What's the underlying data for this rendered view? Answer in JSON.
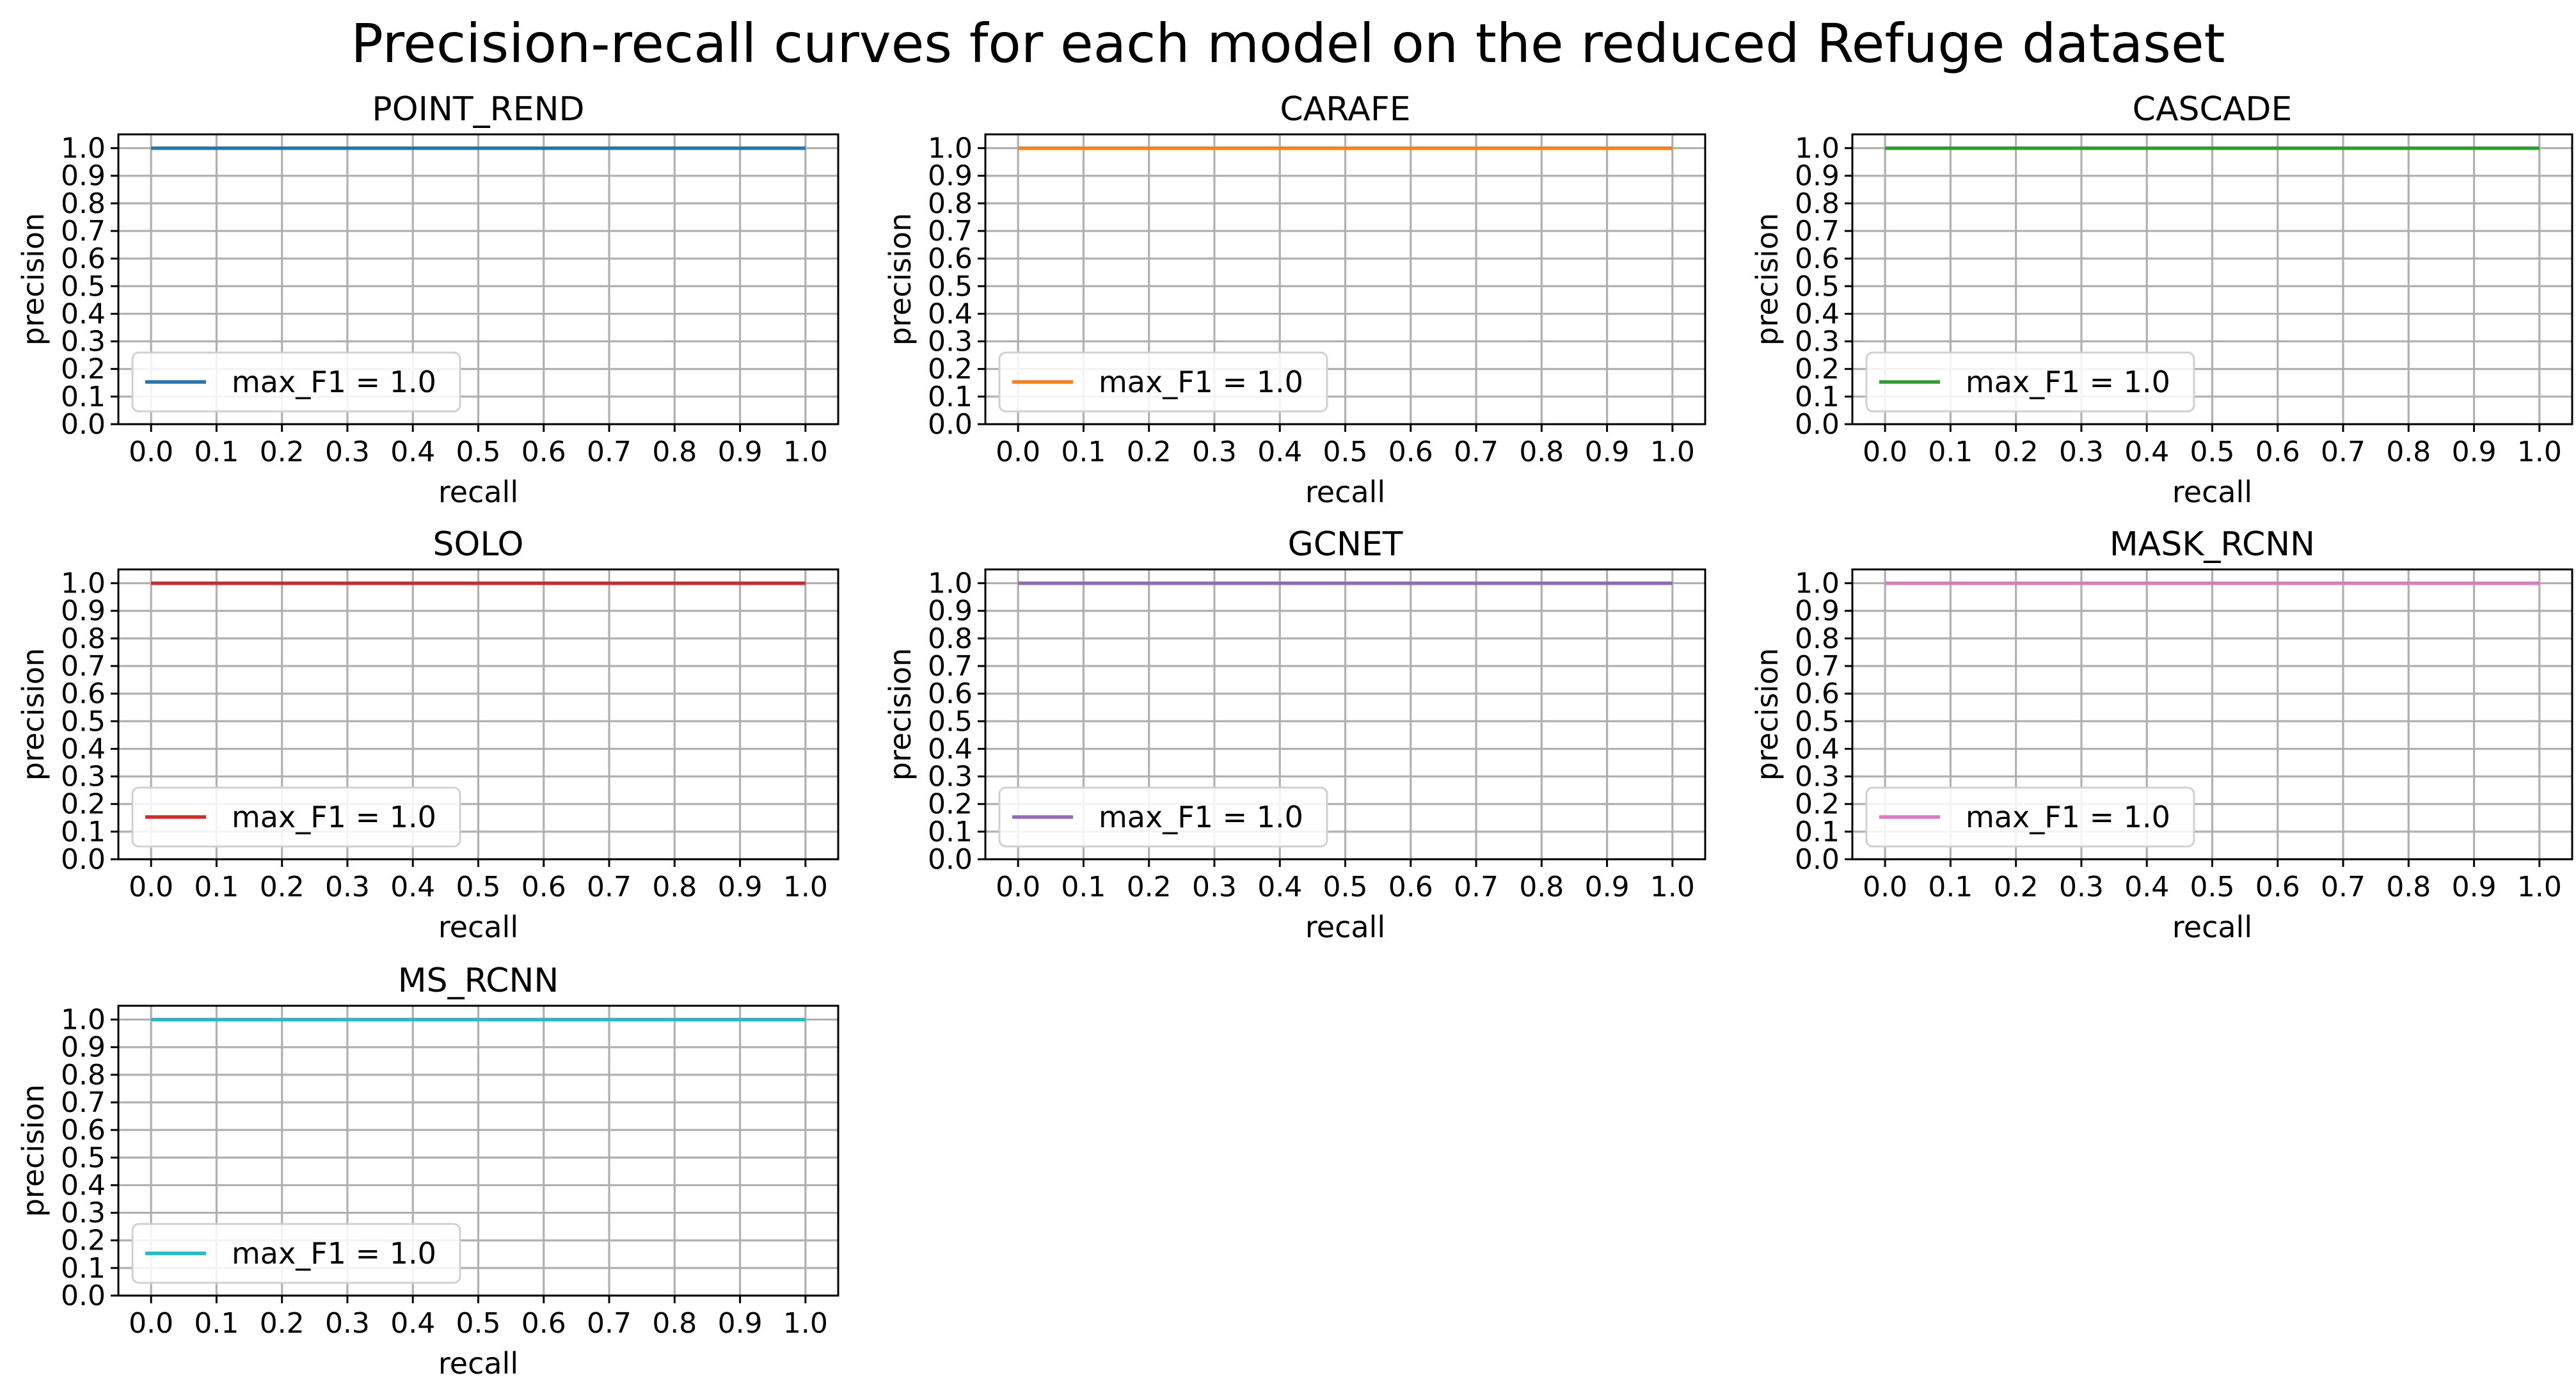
{
  "figure": {
    "title": "Precision-recall curves for each model on the reduced Refuge dataset"
  },
  "chart_data": [
    {
      "type": "line",
      "title": "POINT_REND",
      "xlabel": "recall",
      "ylabel": "precision",
      "xlim": [
        -0.05,
        1.05
      ],
      "ylim": [
        0.0,
        1.05
      ],
      "xticks": [
        "0.0",
        "0.1",
        "0.2",
        "0.3",
        "0.4",
        "0.5",
        "0.6",
        "0.7",
        "0.8",
        "0.9",
        "1.0"
      ],
      "yticks": [
        "0.0",
        "0.1",
        "0.2",
        "0.3",
        "0.4",
        "0.5",
        "0.6",
        "0.7",
        "0.8",
        "0.9",
        "1.0"
      ],
      "grid": true,
      "legend_position": "lower-left",
      "series": [
        {
          "name": "max_F1 = 1.0",
          "color": "#1f77b4",
          "x": [
            0.0,
            1.0
          ],
          "y": [
            1.0,
            1.0
          ]
        }
      ]
    },
    {
      "type": "line",
      "title": "CARAFE",
      "xlabel": "recall",
      "ylabel": "precision",
      "xlim": [
        -0.05,
        1.05
      ],
      "ylim": [
        0.0,
        1.05
      ],
      "xticks": [
        "0.0",
        "0.1",
        "0.2",
        "0.3",
        "0.4",
        "0.5",
        "0.6",
        "0.7",
        "0.8",
        "0.9",
        "1.0"
      ],
      "yticks": [
        "0.0",
        "0.1",
        "0.2",
        "0.3",
        "0.4",
        "0.5",
        "0.6",
        "0.7",
        "0.8",
        "0.9",
        "1.0"
      ],
      "grid": true,
      "legend_position": "lower-left",
      "series": [
        {
          "name": "max_F1 = 1.0",
          "color": "#ff7f0e",
          "x": [
            0.0,
            1.0
          ],
          "y": [
            1.0,
            1.0
          ]
        }
      ]
    },
    {
      "type": "line",
      "title": "CASCADE",
      "xlabel": "recall",
      "ylabel": "precision",
      "xlim": [
        -0.05,
        1.05
      ],
      "ylim": [
        0.0,
        1.05
      ],
      "xticks": [
        "0.0",
        "0.1",
        "0.2",
        "0.3",
        "0.4",
        "0.5",
        "0.6",
        "0.7",
        "0.8",
        "0.9",
        "1.0"
      ],
      "yticks": [
        "0.0",
        "0.1",
        "0.2",
        "0.3",
        "0.4",
        "0.5",
        "0.6",
        "0.7",
        "0.8",
        "0.9",
        "1.0"
      ],
      "grid": true,
      "legend_position": "lower-left",
      "series": [
        {
          "name": "max_F1 = 1.0",
          "color": "#2ca02c",
          "x": [
            0.0,
            1.0
          ],
          "y": [
            1.0,
            1.0
          ]
        }
      ]
    },
    {
      "type": "line",
      "title": "SOLO",
      "xlabel": "recall",
      "ylabel": "precision",
      "xlim": [
        -0.05,
        1.05
      ],
      "ylim": [
        0.0,
        1.05
      ],
      "xticks": [
        "0.0",
        "0.1",
        "0.2",
        "0.3",
        "0.4",
        "0.5",
        "0.6",
        "0.7",
        "0.8",
        "0.9",
        "1.0"
      ],
      "yticks": [
        "0.0",
        "0.1",
        "0.2",
        "0.3",
        "0.4",
        "0.5",
        "0.6",
        "0.7",
        "0.8",
        "0.9",
        "1.0"
      ],
      "grid": true,
      "legend_position": "lower-left",
      "series": [
        {
          "name": "max_F1 = 1.0",
          "color": "#d62728",
          "x": [
            0.0,
            1.0
          ],
          "y": [
            1.0,
            1.0
          ]
        }
      ]
    },
    {
      "type": "line",
      "title": "GCNET",
      "xlabel": "recall",
      "ylabel": "precision",
      "xlim": [
        -0.05,
        1.05
      ],
      "ylim": [
        0.0,
        1.05
      ],
      "xticks": [
        "0.0",
        "0.1",
        "0.2",
        "0.3",
        "0.4",
        "0.5",
        "0.6",
        "0.7",
        "0.8",
        "0.9",
        "1.0"
      ],
      "yticks": [
        "0.0",
        "0.1",
        "0.2",
        "0.3",
        "0.4",
        "0.5",
        "0.6",
        "0.7",
        "0.8",
        "0.9",
        "1.0"
      ],
      "grid": true,
      "legend_position": "lower-left",
      "series": [
        {
          "name": "max_F1 = 1.0",
          "color": "#9467bd",
          "x": [
            0.0,
            1.0
          ],
          "y": [
            1.0,
            1.0
          ]
        }
      ]
    },
    {
      "type": "line",
      "title": "MASK_RCNN",
      "xlabel": "recall",
      "ylabel": "precision",
      "xlim": [
        -0.05,
        1.05
      ],
      "ylim": [
        0.0,
        1.05
      ],
      "xticks": [
        "0.0",
        "0.1",
        "0.2",
        "0.3",
        "0.4",
        "0.5",
        "0.6",
        "0.7",
        "0.8",
        "0.9",
        "1.0"
      ],
      "yticks": [
        "0.0",
        "0.1",
        "0.2",
        "0.3",
        "0.4",
        "0.5",
        "0.6",
        "0.7",
        "0.8",
        "0.9",
        "1.0"
      ],
      "grid": true,
      "legend_position": "lower-left",
      "series": [
        {
          "name": "max_F1 = 1.0",
          "color": "#e377c2",
          "x": [
            0.0,
            1.0
          ],
          "y": [
            1.0,
            1.0
          ]
        }
      ]
    },
    {
      "type": "line",
      "title": "MS_RCNN",
      "xlabel": "recall",
      "ylabel": "precision",
      "xlim": [
        -0.05,
        1.05
      ],
      "ylim": [
        0.0,
        1.05
      ],
      "xticks": [
        "0.0",
        "0.1",
        "0.2",
        "0.3",
        "0.4",
        "0.5",
        "0.6",
        "0.7",
        "0.8",
        "0.9",
        "1.0"
      ],
      "yticks": [
        "0.0",
        "0.1",
        "0.2",
        "0.3",
        "0.4",
        "0.5",
        "0.6",
        "0.7",
        "0.8",
        "0.9",
        "1.0"
      ],
      "grid": true,
      "legend_position": "lower-left",
      "series": [
        {
          "name": "max_F1 = 1.0",
          "color": "#17becf",
          "x": [
            0.0,
            1.0
          ],
          "y": [
            1.0,
            1.0
          ]
        }
      ]
    }
  ]
}
